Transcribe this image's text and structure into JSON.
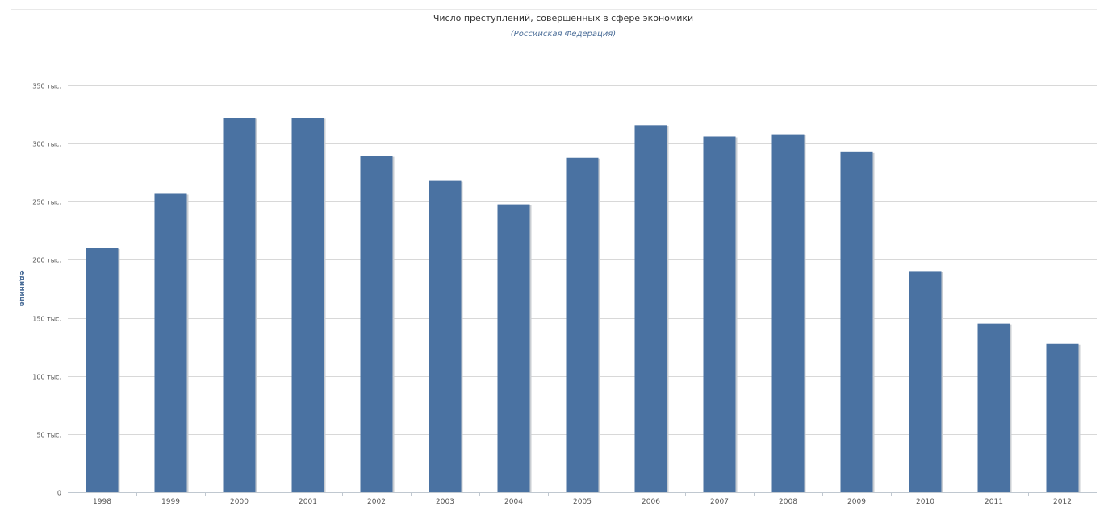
{
  "chart_data": {
    "type": "bar",
    "title": "Число преступлений, совершенных в сфере экономики",
    "subtitle": "(Российская Федерация)",
    "ylabel": "единица",
    "xlabel": "",
    "categories": [
      "1998",
      "1999",
      "2000",
      "2001",
      "2002",
      "2003",
      "2004",
      "2005",
      "2006",
      "2007",
      "2008",
      "2009",
      "2010",
      "2011",
      "2012"
    ],
    "values": [
      210000,
      256800,
      322000,
      322000,
      289300,
      267800,
      247700,
      287800,
      315800,
      306000,
      308000,
      292600,
      190300,
      145100,
      127700
    ],
    "ylim": [
      0,
      350000
    ],
    "yticks": [
      0,
      50000,
      100000,
      150000,
      200000,
      250000,
      300000,
      350000
    ],
    "ytick_labels": [
      "0",
      "50 тыс.",
      "100 тыс.",
      "150 тыс.",
      "200 тыс.",
      "250 тыс.",
      "300 тыс.",
      "350 тыс."
    ],
    "grid": true,
    "legend": "none",
    "colors": {
      "bar": "#4a72a2",
      "bar_shadow": "#c9cdd2",
      "grid": "#d8d8d8",
      "axis_title": "#4d6f99"
    }
  }
}
